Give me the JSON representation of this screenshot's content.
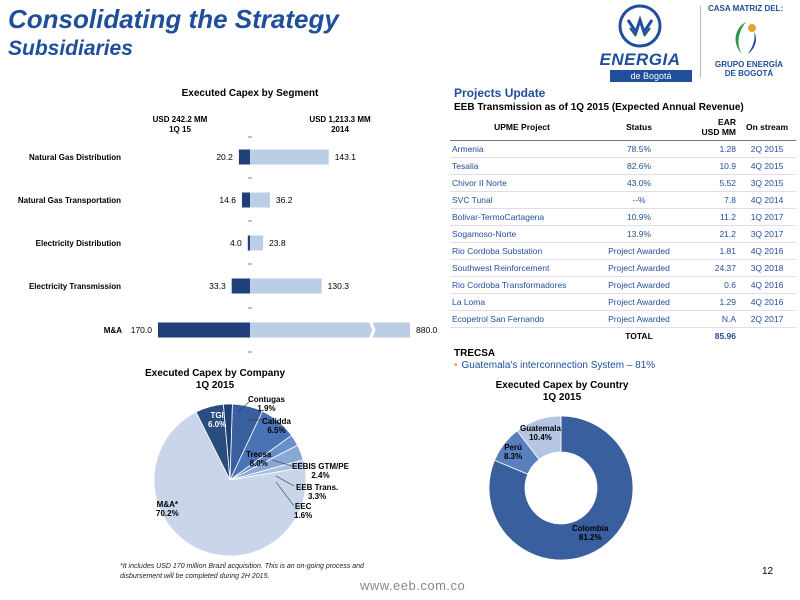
{
  "header": {
    "title": "Consolidating the Strategy",
    "subtitle": "Subsidiaries"
  },
  "logo": {
    "main_word": "ENERGIA",
    "main_sub": "de Bogotá",
    "casa": "CASA MATRIZ DEL:",
    "grupo_line1": "GRUPO ENERGÍA",
    "grupo_line2": "DE BOGOTÁ"
  },
  "bar_chart": {
    "title": "Executed Capex by Segment",
    "left_head_1": "USD 242.2  MM",
    "left_head_2": "1Q 15",
    "right_head_1": "USD 1,213.3  MM",
    "right_head_2": "2014"
  },
  "chart_data": [
    {
      "type": "bar",
      "title": "Executed Capex by Segment",
      "categories": [
        "Natural Gas Distribution",
        "Natural Gas Transportation",
        "Electricity Distribution",
        "Electricity Transmission",
        "M&A"
      ],
      "series": [
        {
          "name": "1Q 15",
          "values": [
            20.2,
            14.6,
            4.0,
            33.3,
            170.0
          ]
        },
        {
          "name": "2014",
          "values": [
            143.1,
            36.2,
            23.8,
            130.3,
            880.0
          ]
        }
      ],
      "value_labels_1q15": [
        "20.2",
        "14.6",
        "4.0",
        "33.3",
        "170.0"
      ],
      "value_labels_2014": [
        "143.1",
        "36.2",
        "23.8",
        "130.3",
        "880.0"
      ],
      "colors": {
        "1Q 15": "#1f3f78",
        "2014": "#bccde6"
      }
    },
    {
      "type": "pie",
      "title": "Executed Capex by Company 1Q 2015",
      "slices": [
        {
          "name": "TGI",
          "value": 6.0
        },
        {
          "name": "Contugas",
          "value": 1.9
        },
        {
          "name": "Calidda",
          "value": 6.5
        },
        {
          "name": "Trecsa",
          "value": 8.0
        },
        {
          "name": "EEBIS GTM/PE",
          "value": 2.4
        },
        {
          "name": "EEB Trans.",
          "value": 3.3
        },
        {
          "name": "EEC",
          "value": 1.6
        },
        {
          "name": "M&A*",
          "value": 70.2
        }
      ]
    },
    {
      "type": "pie",
      "title": "Executed Capex by Country 1Q 2015",
      "slices": [
        {
          "name": "Colombia",
          "value": 81.2
        },
        {
          "name": "Perú",
          "value": 8.3
        },
        {
          "name": "Guatemala",
          "value": 10.4
        }
      ]
    }
  ],
  "pie_company": {
    "title_1": "Executed Capex by Company",
    "title_2": "1Q 2015",
    "labels": {
      "tgi": "TGI",
      "tgi_v": "6.0%",
      "contugas": "Contugas",
      "contugas_v": "1.9%",
      "calidda": "Calidda",
      "calidda_v": "6.5%",
      "trecsa": "Trecsa",
      "trecsa_v": "8.0%",
      "eebis": "EEBIS GTM/PE",
      "eebis_v": "2.4%",
      "eebtrans": "EEB Trans.",
      "eebtrans_v": "3.3%",
      "eec": "EEC",
      "eec_v": "1.6%",
      "ma": "M&A*",
      "ma_v": "70.2%"
    }
  },
  "pie_country": {
    "title_1": "Executed Capex by Country",
    "title_2": "1Q 2015",
    "labels": {
      "guatemala": "Guatemala",
      "guatemala_v": "10.4%",
      "peru": "Perú",
      "peru_v": "8.3%",
      "colombia": "Colombia",
      "colombia_v": "81.2%"
    }
  },
  "projects": {
    "title": "Projects Update",
    "subtitle": "EEB Transmission as of  1Q 2015 (Expected Annual Revenue)",
    "headers": {
      "project": "UPME Project",
      "status": "Status",
      "ear_1": "EAR",
      "ear_2": "USD MM",
      "stream": "On stream"
    },
    "rows": [
      {
        "name": "Armenia",
        "status": "78.5%",
        "ear": "1.28",
        "stream": "2Q 2015"
      },
      {
        "name": "Tesalia",
        "status": "82.6%",
        "ear": "10.9",
        "stream": "4Q 2015"
      },
      {
        "name": "Chivor II Norte",
        "status": "43.0%",
        "ear": "5.52",
        "stream": "3Q 2015"
      },
      {
        "name": "SVC Tunal",
        "status": "--%",
        "ear": "7.8",
        "stream": "4Q 2014"
      },
      {
        "name": "Bolivar-TermoCartagena",
        "status": "10.9%",
        "ear": "11.2",
        "stream": "1Q 2017"
      },
      {
        "name": "Sogamoso-Norte",
        "status": "13.9%",
        "ear": "21.2",
        "stream": "3Q 2017"
      },
      {
        "name": "Rio Cordoba Substation",
        "status": "Project Awarded",
        "ear": "1.81",
        "stream": "4Q 2016"
      },
      {
        "name": "Southwest Reinforcement",
        "status": "Project Awarded",
        "ear": "24.37",
        "stream": "3Q 2018"
      },
      {
        "name": "Rio Cordoba Transformadores",
        "status": "Project Awarded",
        "ear": "0.6",
        "stream": "4Q 2016"
      },
      {
        "name": "La Loma",
        "status": "Project Awarded",
        "ear": "1.29",
        "stream": "4Q 2016"
      },
      {
        "name": "Ecopetrol San Fernando",
        "status": "Project Awarded",
        "ear": "N.A",
        "stream": "2Q 2017"
      }
    ],
    "total_label": "TOTAL",
    "total_value": "85.96",
    "trecsa_title": "TRECSA",
    "trecsa_item": "Guatemala's interconnection System – 81%"
  },
  "footer": {
    "footnote": "*It includes USD 170  million Brazil acquisition.  This is an on-going process and disbursement will be completed during 2H 2015.",
    "url": "www.eeb.com.co",
    "page": "12"
  }
}
